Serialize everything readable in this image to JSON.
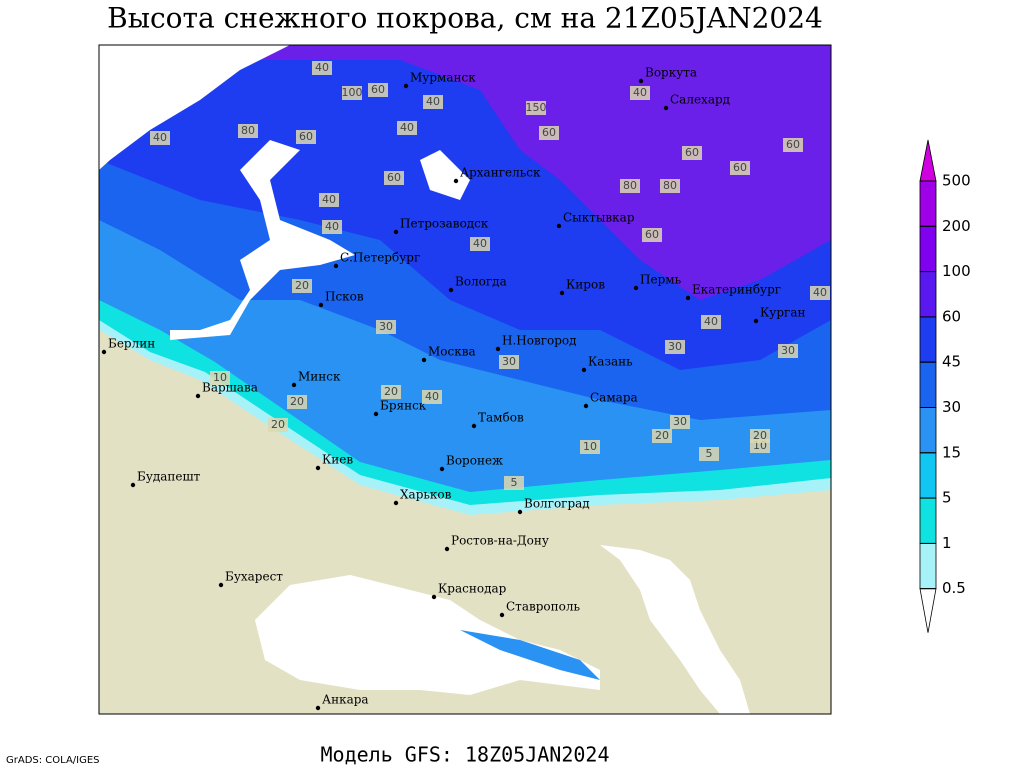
{
  "title": "Высота снежного покрова, см на 21Z05JAN2024",
  "footer": "Модель GFS: 18Z05JAN2024",
  "credit": "GrADS: COLA/IGES",
  "cities": [
    "Мурманск",
    "Воркута",
    "Салехард",
    "Архангельск",
    "Петрозаводск",
    "Сыктывкар",
    "С.Петербург",
    "Вологда",
    "Киров",
    "Пермь",
    "Екатеринбург",
    "Псков",
    "Курган",
    "Берлин",
    "Н.Новгород",
    "Москва",
    "Казань",
    "Минск",
    "Варшава",
    "Самара",
    "Брянск",
    "Тамбов",
    "Киев",
    "Воронеж",
    "Будапешт",
    "Харьков",
    "Волгоград",
    "Ростов-на-Дону",
    "Бухарест",
    "Краснодар",
    "Ставрополь",
    "Анкара"
  ],
  "contour_labels": [
    40,
    100,
    60,
    40,
    80,
    40,
    60,
    40,
    150,
    60,
    40,
    60,
    80,
    80,
    60,
    60,
    40,
    60,
    40,
    40,
    60,
    20,
    30,
    20,
    40,
    30,
    40,
    30,
    20,
    20,
    10,
    30,
    20,
    10,
    5,
    5,
    10,
    20,
    30,
    40
  ],
  "colorbar": {
    "levels": [
      500,
      200,
      100,
      60,
      45,
      30,
      15,
      5,
      1,
      0.5
    ],
    "colors": [
      "#d000e0",
      "#a000e8",
      "#8000f0",
      "#5a18f0",
      "#1e3cf0",
      "#1a64f0",
      "#2a92f2",
      "#12c6f2",
      "#10e2e2",
      "#a6f2f8",
      "#ffffff"
    ]
  }
}
